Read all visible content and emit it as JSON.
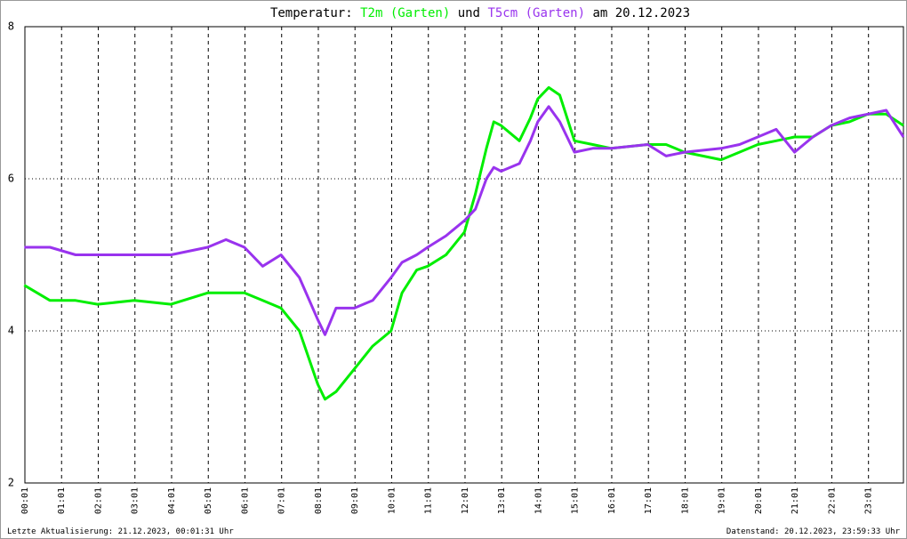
{
  "chart_data": {
    "type": "line",
    "title_prefix": "Temperatur:",
    "title_joiner": "und",
    "title_suffix": "am 20.12.2023",
    "footer_left": "Letzte Aktualisierung: 21.12.2023, 00:01:31 Uhr",
    "footer_right": "Datenstand: 20.12.2023, 23:59:33 Uhr",
    "x": [
      0,
      0.7,
      1.4,
      2,
      3,
      4,
      5,
      5.5,
      6,
      6.5,
      7,
      7.5,
      8,
      8.2,
      8.5,
      9,
      9.5,
      10,
      10.3,
      10.7,
      11,
      11.5,
      12,
      12.3,
      12.6,
      12.8,
      13,
      13.5,
      13.8,
      14,
      14.3,
      14.6,
      15,
      15.5,
      16,
      17,
      17.5,
      18,
      19,
      19.5,
      20,
      20.5,
      21,
      21.5,
      22,
      22.5,
      23,
      23.5,
      23.97
    ],
    "series": [
      {
        "name": "T2m (Garten)",
        "color": "#00ee00",
        "values": [
          4.6,
          4.4,
          4.4,
          4.35,
          4.4,
          4.35,
          4.5,
          4.5,
          4.5,
          4.4,
          4.3,
          4.0,
          3.3,
          3.1,
          3.2,
          3.5,
          3.8,
          4.0,
          4.5,
          4.8,
          4.85,
          5.0,
          5.3,
          5.8,
          6.4,
          6.75,
          6.7,
          6.5,
          6.8,
          7.05,
          7.2,
          7.1,
          6.5,
          6.45,
          6.4,
          6.45,
          6.45,
          6.35,
          6.25,
          6.35,
          6.45,
          6.5,
          6.55,
          6.55,
          6.7,
          6.75,
          6.85,
          6.85,
          6.7
        ]
      },
      {
        "name": "T5cm (Garten)",
        "color": "#9933ee",
        "values": [
          5.1,
          5.1,
          5.0,
          5.0,
          5.0,
          5.0,
          5.1,
          5.2,
          5.1,
          4.85,
          5.0,
          4.7,
          4.15,
          3.95,
          4.3,
          4.3,
          4.4,
          4.7,
          4.9,
          5.0,
          5.1,
          5.25,
          5.45,
          5.6,
          6.0,
          6.15,
          6.1,
          6.2,
          6.5,
          6.75,
          6.95,
          6.75,
          6.35,
          6.4,
          6.4,
          6.45,
          6.3,
          6.35,
          6.4,
          6.45,
          6.55,
          6.65,
          6.35,
          6.55,
          6.7,
          6.8,
          6.85,
          6.9,
          6.55
        ]
      }
    ],
    "xlim": [
      0.017,
      23.97
    ],
    "xticks": [
      {
        "value": 0.017,
        "label": "00:01"
      },
      {
        "value": 1.017,
        "label": "01:01"
      },
      {
        "value": 2.017,
        "label": "02:01"
      },
      {
        "value": 3.017,
        "label": "03:01"
      },
      {
        "value": 4.017,
        "label": "04:01"
      },
      {
        "value": 5.017,
        "label": "05:01"
      },
      {
        "value": 6.017,
        "label": "06:01"
      },
      {
        "value": 7.017,
        "label": "07:01"
      },
      {
        "value": 8.017,
        "label": "08:01"
      },
      {
        "value": 9.017,
        "label": "09:01"
      },
      {
        "value": 10.017,
        "label": "10:01"
      },
      {
        "value": 11.017,
        "label": "11:01"
      },
      {
        "value": 12.017,
        "label": "12:01"
      },
      {
        "value": 13.017,
        "label": "13:01"
      },
      {
        "value": 14.017,
        "label": "14:01"
      },
      {
        "value": 15.017,
        "label": "15:01"
      },
      {
        "value": 16.017,
        "label": "16:01"
      },
      {
        "value": 17.017,
        "label": "17:01"
      },
      {
        "value": 18.017,
        "label": "18:01"
      },
      {
        "value": 19.017,
        "label": "19:01"
      },
      {
        "value": 20.017,
        "label": "20:01"
      },
      {
        "value": 21.017,
        "label": "21:01"
      },
      {
        "value": 22.017,
        "label": "22:01"
      },
      {
        "value": 23.017,
        "label": "23:01"
      }
    ],
    "ylim": [
      2,
      8
    ],
    "yticks": [
      2,
      4,
      6,
      8
    ],
    "grid": true
  }
}
